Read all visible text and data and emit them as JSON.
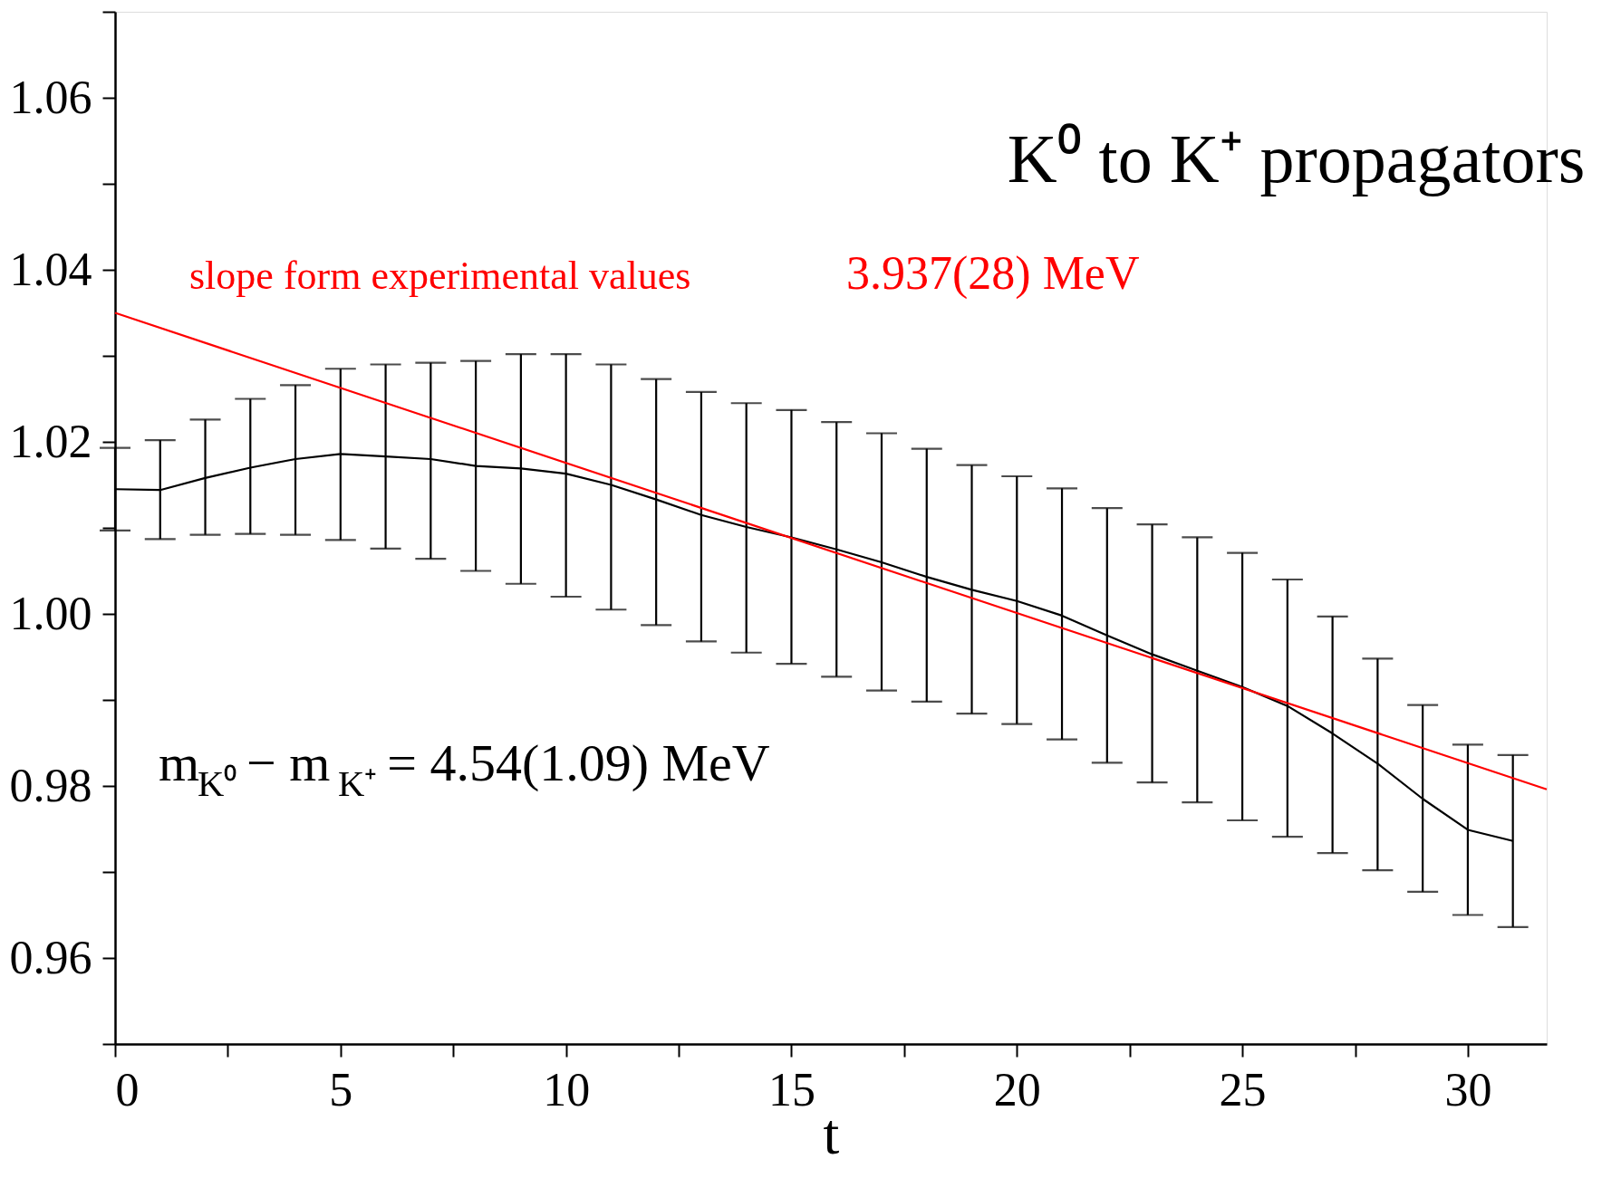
{
  "chart_data": {
    "type": "line",
    "title": "K⁰ to K⁺ propagators",
    "xlabel": "t",
    "xlim": [
      0,
      31.75
    ],
    "ylim": [
      0.95,
      1.07
    ],
    "xticks": [
      0,
      {
        "value": 2.5,
        "label": null
      },
      5,
      {
        "value": 7.5,
        "label": null
      },
      10,
      {
        "value": 12.5,
        "label": null
      },
      15,
      {
        "value": 17.5,
        "label": null
      },
      20,
      {
        "value": 22.5,
        "label": null
      },
      25,
      {
        "value": 27.5,
        "label": null
      },
      30
    ],
    "yticks": [
      {
        "value": 0.95,
        "label": null
      },
      0.96,
      {
        "value": 0.97,
        "label": null
      },
      0.98,
      {
        "value": 0.99,
        "label": null
      },
      {
        "value": 1.0,
        "label": "1.00"
      },
      {
        "value": 1.01,
        "label": null
      },
      1.02,
      {
        "value": 1.03,
        "label": null
      },
      1.04,
      {
        "value": 1.05,
        "label": null
      },
      1.06,
      {
        "value": 1.07,
        "label": null
      }
    ],
    "marker": "none",
    "line_style": "solid",
    "annotations": [
      "slope form experimental values",
      "3.937(28) MeV",
      "m$_{K⁰}$ − m$_{K⁺}$ = 4.54(1.09) MeV"
    ],
    "series": [
      {
        "color": "#000000",
        "x": [
          0,
          1,
          2,
          3,
          4,
          5,
          6,
          7,
          8,
          9,
          10,
          11,
          12,
          13,
          14,
          15,
          16,
          17,
          18,
          19,
          20,
          21,
          22,
          23,
          24,
          25,
          26,
          27,
          28,
          29,
          30,
          31
        ],
        "values": [
          1.0145,
          1.0144,
          1.0158,
          1.017,
          1.018,
          1.0186,
          1.0183,
          1.018,
          1.0172,
          1.0169,
          1.0163,
          1.015,
          1.0133,
          1.0115,
          1.0101,
          1.0089,
          1.0075,
          1.006,
          1.0043,
          1.0028,
          1.0015,
          0.9998,
          0.9975,
          0.9953,
          0.9934,
          0.9915,
          0.9893,
          0.9861,
          0.9826,
          0.9785,
          0.9749,
          0.9736
        ],
        "errors": [
          [
            1.0097,
            1.0193
          ],
          [
            1.0087,
            1.0202
          ],
          [
            1.0092,
            1.0226
          ],
          [
            1.0093,
            1.025
          ],
          [
            1.0092,
            1.0266
          ],
          [
            1.0086,
            1.0285
          ],
          [
            1.0076,
            1.029
          ],
          [
            1.0064,
            1.0292
          ],
          [
            1.005,
            1.0294
          ],
          [
            1.0035,
            1.0302
          ],
          [
            1.002,
            1.0302
          ],
          [
            1.0005,
            1.029
          ],
          [
            0.9987,
            1.0273
          ],
          [
            0.9968,
            1.0258
          ],
          [
            0.9955,
            1.0245
          ],
          [
            0.9942,
            1.0237
          ],
          [
            0.9927,
            1.0223
          ],
          [
            0.9911,
            1.021
          ],
          [
            0.9898,
            1.0192
          ],
          [
            0.9884,
            1.0173
          ],
          [
            0.9872,
            1.016
          ],
          [
            0.9854,
            1.0146
          ],
          [
            0.9827,
            1.0123
          ],
          [
            0.9804,
            1.0104
          ],
          [
            0.9781,
            1.0089
          ],
          [
            0.976,
            1.0071
          ],
          [
            0.9741,
            1.004
          ],
          [
            0.9722,
            0.9997
          ],
          [
            0.9702,
            0.9948
          ],
          [
            0.9677,
            0.9894
          ],
          [
            0.965,
            0.9848
          ],
          [
            0.9636,
            0.9836
          ]
        ]
      },
      {
        "color": "#ff0000",
        "x": [
          0,
          31.75
        ],
        "values": [
          1.035,
          0.9796
        ]
      }
    ]
  }
}
